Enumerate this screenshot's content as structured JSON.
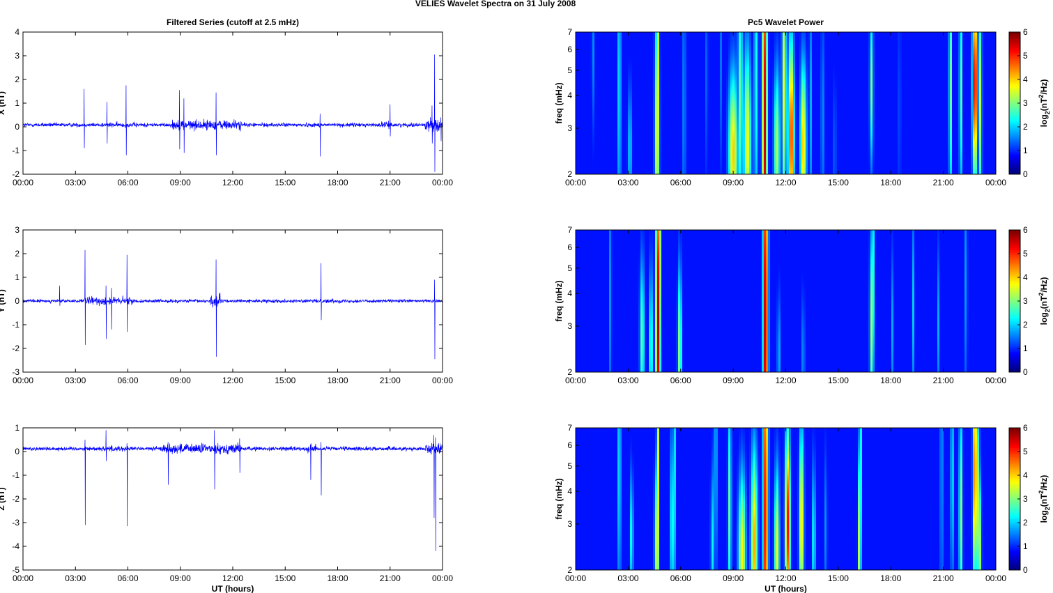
{
  "figure": {
    "title": "VELIES Wavelet Spectra on 31 July      2008",
    "left_title": "Filtered Series (cutoff at 2.5 mHz)",
    "right_title": "Pc5 Wavelet Power",
    "xlabel": "UT (hours)",
    "freq_label": "freq (mHz)",
    "colorbar_label_pre": "log",
    "colorbar_label_sub": "2",
    "colorbar_label_mid": "(nT",
    "colorbar_label_sup": "2",
    "colorbar_label_post": "/Hz)"
  },
  "colors": {
    "trace": "#0000ff",
    "background": "#00008f"
  },
  "chart_data": [
    {
      "type": "line",
      "title": "Filtered Series (cutoff at 2.5 mHz)",
      "ylabel": "X (nT)",
      "xlabel": "",
      "xlim": [
        0,
        24
      ],
      "x_ticks": [
        "00:00",
        "03:00",
        "06:00",
        "09:00",
        "12:00",
        "15:00",
        "18:00",
        "21:00",
        "00:00"
      ],
      "ylim": [
        -2,
        4
      ],
      "y_ticks": [
        "-2",
        "-1",
        "0",
        "1",
        "2",
        "3",
        "4"
      ],
      "baseline": 0.08,
      "noise": 0.1,
      "active": [
        [
          8.5,
          12.5,
          0.25
        ],
        [
          4.5,
          6.5,
          0.12
        ],
        [
          23.0,
          24.0,
          0.3
        ],
        [
          20.5,
          21.0,
          0.15
        ]
      ],
      "spikes": [
        [
          3.5,
          1.6,
          -0.9
        ],
        [
          4.8,
          1.05,
          -0.7
        ],
        [
          5.9,
          1.75,
          -1.2
        ],
        [
          8.95,
          1.55,
          -0.95
        ],
        [
          9.2,
          1.2,
          -1.1
        ],
        [
          11.05,
          1.45,
          -1.2
        ],
        [
          17.0,
          0.55,
          -1.25
        ],
        [
          21.0,
          0.95,
          -0.4
        ],
        [
          23.4,
          0.9,
          -0.7
        ],
        [
          23.55,
          3.05,
          -1.9
        ],
        [
          23.9,
          0.4,
          -0.6
        ]
      ]
    },
    {
      "type": "line",
      "title": "",
      "ylabel": "Y (nT)",
      "xlabel": "",
      "xlim": [
        0,
        24
      ],
      "x_ticks": [
        "00:00",
        "03:00",
        "06:00",
        "09:00",
        "12:00",
        "15:00",
        "18:00",
        "21:00",
        "00:00"
      ],
      "ylim": [
        -3,
        3
      ],
      "y_ticks": [
        "-3",
        "-2",
        "-1",
        "0",
        "1",
        "2",
        "3"
      ],
      "baseline": 0.0,
      "noise": 0.08,
      "active": [
        [
          3.5,
          6.3,
          0.2
        ],
        [
          10.7,
          11.3,
          0.35
        ],
        [
          16.8,
          18.5,
          0.1
        ]
      ],
      "spikes": [
        [
          2.1,
          0.65,
          -0.2
        ],
        [
          3.55,
          2.15,
          -1.85
        ],
        [
          4.75,
          0.65,
          -1.6
        ],
        [
          5.05,
          0.55,
          -1.2
        ],
        [
          5.95,
          1.95,
          -1.3
        ],
        [
          11.05,
          1.75,
          -2.35
        ],
        [
          17.05,
          1.6,
          -0.8
        ],
        [
          23.55,
          0.9,
          -2.45
        ]
      ]
    },
    {
      "type": "line",
      "title": "",
      "ylabel": "Z (nT)",
      "xlabel": "UT (hours)",
      "xlim": [
        0,
        24
      ],
      "x_ticks": [
        "00:00",
        "03:00",
        "06:00",
        "09:00",
        "12:00",
        "15:00",
        "18:00",
        "21:00",
        "00:00"
      ],
      "ylim": [
        -5,
        1
      ],
      "y_ticks": [
        "-5",
        "-4",
        "-3",
        "-2",
        "-1",
        "0",
        "1"
      ],
      "baseline": 0.12,
      "noise": 0.1,
      "active": [
        [
          8.0,
          12.5,
          0.25
        ],
        [
          4.5,
          6.0,
          0.15
        ],
        [
          16.3,
          16.8,
          0.2
        ],
        [
          23.0,
          24.0,
          0.25
        ]
      ],
      "spikes": [
        [
          3.55,
          0.5,
          -3.1
        ],
        [
          4.75,
          0.9,
          -0.4
        ],
        [
          5.95,
          0.35,
          -3.15
        ],
        [
          8.3,
          0.4,
          -1.4
        ],
        [
          10.95,
          0.9,
          -1.6
        ],
        [
          12.4,
          0.55,
          -0.9
        ],
        [
          16.45,
          0.3,
          -1.2
        ],
        [
          17.05,
          0.4,
          -1.85
        ],
        [
          23.5,
          0.7,
          -2.8
        ],
        [
          23.6,
          0.6,
          -4.2
        ]
      ]
    },
    {
      "type": "heatmap",
      "title": "Pc5 Wavelet Power",
      "ylabel": "freq (mHz)",
      "xlabel": "",
      "xlim": [
        0,
        24
      ],
      "x_ticks": [
        "00:00",
        "03:00",
        "06:00",
        "09:00",
        "12:00",
        "15:00",
        "18:00",
        "21:00",
        "00:00"
      ],
      "ylim": [
        2,
        7
      ],
      "y_scale": "log",
      "y_ticks": [
        "2",
        "3",
        "4",
        "5",
        "6",
        "7"
      ],
      "colorbar": {
        "range": [
          0,
          6
        ],
        "ticks": [
          "0",
          "1",
          "2",
          "3",
          "4",
          "5",
          "6"
        ],
        "colormap": "jet"
      },
      "blobs": [
        [
          1.0,
          5.8,
          0.06,
          0.5,
          1.0
        ],
        [
          2.5,
          4.3,
          0.05,
          1.0,
          2.5
        ],
        [
          3.1,
          2.5,
          0.09,
          0.4,
          1.5
        ],
        [
          4.65,
          2.8,
          0.09,
          0.8,
          3.6
        ],
        [
          4.72,
          4.5,
          0.05,
          1.2,
          3.2
        ],
        [
          6.2,
          3.6,
          0.06,
          1.0,
          1.2
        ],
        [
          7.5,
          5.0,
          0.05,
          0.7,
          0.9
        ],
        [
          8.3,
          5.4,
          0.05,
          0.7,
          0.8
        ],
        [
          9.0,
          2.4,
          0.18,
          0.5,
          3.8
        ],
        [
          9.8,
          2.6,
          0.15,
          0.6,
          3.5
        ],
        [
          9.4,
          3.8,
          0.1,
          0.8,
          2.5
        ],
        [
          10.3,
          4.5,
          0.08,
          1.0,
          2.0
        ],
        [
          10.8,
          3.0,
          0.1,
          1.5,
          5.5
        ],
        [
          11.5,
          2.5,
          0.12,
          0.5,
          3.0
        ],
        [
          11.9,
          4.2,
          0.08,
          0.8,
          3.5
        ],
        [
          12.3,
          2.8,
          0.12,
          0.6,
          5.0
        ],
        [
          13.0,
          2.6,
          0.12,
          0.5,
          4.0
        ],
        [
          13.4,
          3.5,
          0.05,
          0.8,
          1.5
        ],
        [
          14.1,
          3.2,
          0.05,
          0.7,
          1.5
        ],
        [
          14.8,
          2.4,
          0.05,
          0.5,
          1.0
        ],
        [
          16.9,
          4.4,
          0.07,
          0.5,
          2.5
        ],
        [
          18.5,
          3.5,
          0.05,
          0.8,
          0.8
        ],
        [
          21.4,
          4.5,
          0.06,
          0.8,
          2.8
        ],
        [
          22.0,
          4.2,
          0.06,
          0.7,
          2.5
        ],
        [
          22.8,
          4.5,
          0.1,
          0.6,
          5.8
        ],
        [
          23.1,
          3.8,
          0.07,
          0.7,
          3.0
        ]
      ]
    },
    {
      "type": "heatmap",
      "title": "",
      "ylabel": "freq (mHz)",
      "xlabel": "",
      "xlim": [
        0,
        24
      ],
      "x_ticks": [
        "00:00",
        "03:00",
        "06:00",
        "09:00",
        "12:00",
        "15:00",
        "18:00",
        "21:00",
        "00:00"
      ],
      "ylim": [
        2,
        7
      ],
      "y_scale": "log",
      "y_ticks": [
        "2",
        "3",
        "4",
        "5",
        "6",
        "7"
      ],
      "colorbar": {
        "range": [
          0,
          6
        ],
        "ticks": [
          "0",
          "1",
          "2",
          "3",
          "4",
          "5",
          "6"
        ],
        "colormap": "jet"
      },
      "blobs": [
        [
          2.0,
          4.0,
          0.05,
          0.9,
          1.2
        ],
        [
          3.8,
          2.7,
          0.09,
          0.5,
          2.5
        ],
        [
          4.3,
          2.5,
          0.07,
          0.5,
          2.5
        ],
        [
          4.7,
          3.1,
          0.09,
          1.1,
          5.8
        ],
        [
          4.8,
          5.5,
          0.05,
          1.0,
          3.5
        ],
        [
          5.95,
          2.5,
          0.08,
          0.5,
          3.0
        ],
        [
          10.85,
          3.0,
          0.1,
          1.6,
          6.0
        ],
        [
          11.6,
          2.3,
          0.06,
          0.4,
          1.5
        ],
        [
          13.0,
          2.3,
          0.06,
          0.4,
          1.2
        ],
        [
          16.9,
          3.0,
          0.07,
          0.6,
          2.8
        ],
        [
          17.0,
          4.5,
          0.05,
          0.7,
          2.0
        ],
        [
          18.1,
          2.9,
          0.05,
          0.5,
          1.2
        ],
        [
          19.3,
          3.5,
          0.05,
          0.6,
          1.5
        ],
        [
          20.7,
          3.0,
          0.05,
          0.5,
          1.3
        ],
        [
          22.3,
          4.5,
          0.05,
          0.8,
          1.3
        ]
      ]
    },
    {
      "type": "heatmap",
      "title": "",
      "ylabel": "freq (mHz)",
      "xlabel": "UT (hours)",
      "xlim": [
        0,
        24
      ],
      "x_ticks": [
        "00:00",
        "03:00",
        "06:00",
        "09:00",
        "12:00",
        "15:00",
        "18:00",
        "21:00",
        "00:00"
      ],
      "ylim": [
        2,
        7
      ],
      "y_scale": "log",
      "y_ticks": [
        "2",
        "3",
        "4",
        "5",
        "6",
        "7"
      ],
      "colorbar": {
        "range": [
          0,
          6
        ],
        "ticks": [
          "0",
          "1",
          "2",
          "3",
          "4",
          "5",
          "6"
        ],
        "colormap": "jet"
      },
      "blobs": [
        [
          2.5,
          4.8,
          0.05,
          0.9,
          2.5
        ],
        [
          3.2,
          2.7,
          0.07,
          0.4,
          2.0
        ],
        [
          4.6,
          2.5,
          0.07,
          0.5,
          3.0
        ],
        [
          4.7,
          4.5,
          0.05,
          1.1,
          3.5
        ],
        [
          5.5,
          3.0,
          0.07,
          0.6,
          2.3
        ],
        [
          5.7,
          5.0,
          0.04,
          0.9,
          2.0
        ],
        [
          7.8,
          2.5,
          0.06,
          0.5,
          1.8
        ],
        [
          8.0,
          5.5,
          0.05,
          0.8,
          2.0
        ],
        [
          8.8,
          3.5,
          0.07,
          0.7,
          2.5
        ],
        [
          9.5,
          2.3,
          0.15,
          0.5,
          3.5
        ],
        [
          10.2,
          2.5,
          0.13,
          0.6,
          4.0
        ],
        [
          10.85,
          3.2,
          0.1,
          1.5,
          5.5
        ],
        [
          11.5,
          2.4,
          0.1,
          0.5,
          3.5
        ],
        [
          12.1,
          3.0,
          0.1,
          0.6,
          5.2
        ],
        [
          12.9,
          3.0,
          0.09,
          0.6,
          4.0
        ],
        [
          13.6,
          2.6,
          0.07,
          0.5,
          2.0
        ],
        [
          14.3,
          2.9,
          0.05,
          0.5,
          1.2
        ],
        [
          16.2,
          2.5,
          0.06,
          0.6,
          3.2
        ],
        [
          16.3,
          4.8,
          0.04,
          1.0,
          1.8
        ],
        [
          20.9,
          5.2,
          0.05,
          1.2,
          1.6
        ],
        [
          21.5,
          4.5,
          0.05,
          0.7,
          2.4
        ],
        [
          22.0,
          3.3,
          0.07,
          0.7,
          2.8
        ],
        [
          22.8,
          4.8,
          0.08,
          0.7,
          5.2
        ],
        [
          23.0,
          3.5,
          0.06,
          0.6,
          3.0
        ],
        [
          23.1,
          2.3,
          0.06,
          0.5,
          2.8
        ]
      ]
    }
  ]
}
